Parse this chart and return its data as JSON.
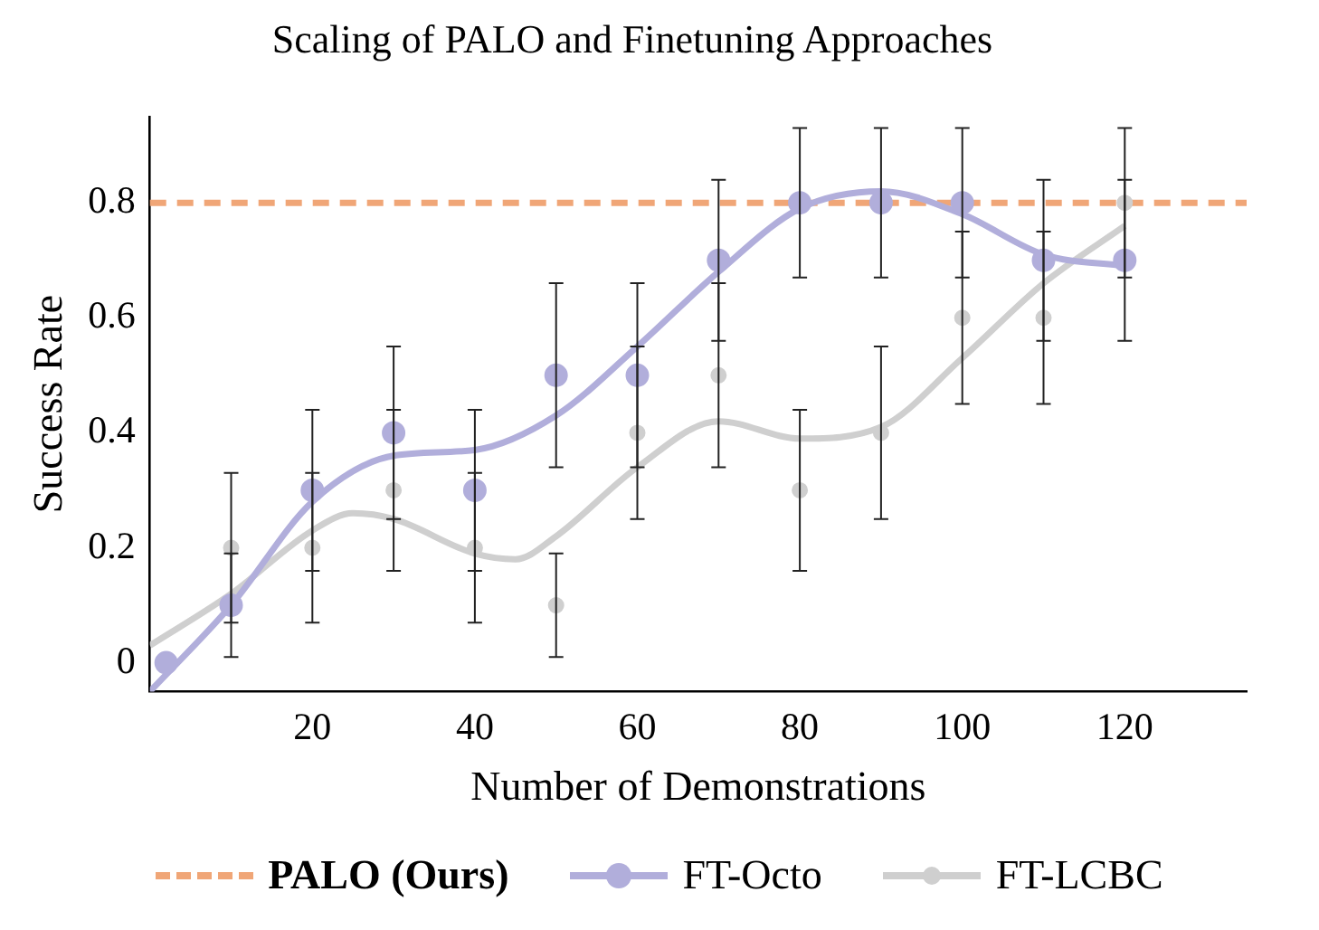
{
  "chart_data": {
    "type": "scatter",
    "title": "Scaling of PALO and Finetuning Approaches",
    "xlabel": "Number of Demonstrations",
    "ylabel": "Success Rate",
    "x": [
      2,
      10,
      20,
      30,
      40,
      50,
      60,
      70,
      80,
      90,
      100,
      110,
      120
    ],
    "xlim": [
      0,
      135
    ],
    "xticks": [
      20,
      40,
      60,
      80,
      100,
      120
    ],
    "ylim": [
      -0.05,
      0.95
    ],
    "yticks": [
      0,
      0.2,
      0.4,
      0.6,
      0.8
    ],
    "grid": false,
    "legend": "bottom",
    "marker": "circle",
    "ref_lines": [
      {
        "axis": "y",
        "value": 0.8,
        "label": "PALO (Ours)",
        "color": "#f0a677",
        "line_style": "dashed"
      }
    ],
    "series": [
      {
        "name": "FT-Octo",
        "color": "#b1aedb",
        "values": [
          0,
          0.1,
          0.3,
          0.4,
          0.3,
          0.5,
          0.5,
          0.7,
          0.8,
          0.8,
          0.8,
          0.7,
          0.7
        ],
        "errors": [
          null,
          0.09,
          0.14,
          0.15,
          0.14,
          0.16,
          0.16,
          0.14,
          0.13,
          0.13,
          0.13,
          0.14,
          0.14
        ]
      },
      {
        "name": "FT-LCBC",
        "color": "#cfcfcf",
        "values": [
          null,
          0.2,
          0.2,
          0.3,
          0.2,
          0.1,
          0.4,
          0.5,
          0.3,
          0.4,
          0.6,
          0.6,
          0.8
        ],
        "errors": [
          null,
          0.13,
          0.13,
          0.14,
          0.13,
          0.09,
          0.15,
          0.16,
          0.14,
          0.15,
          0.15,
          0.15,
          0.13
        ]
      },
      {
        "type": "line",
        "marker": "none",
        "color": "#b1aedb",
        "x": [
          0,
          10,
          20,
          30,
          40,
          50,
          60,
          70,
          80,
          90,
          100,
          110,
          120
        ],
        "values": [
          -0.05,
          0.1,
          0.28,
          0.36,
          0.37,
          0.43,
          0.55,
          0.68,
          0.79,
          0.82,
          0.78,
          0.71,
          0.69
        ]
      },
      {
        "type": "line",
        "marker": "none",
        "color": "#cfcfcf",
        "x": [
          0,
          10,
          20,
          25,
          30,
          40,
          45,
          50,
          60,
          70,
          80,
          90,
          100,
          110,
          120
        ],
        "values": [
          0.03,
          0.12,
          0.23,
          0.26,
          0.25,
          0.19,
          0.18,
          0.22,
          0.34,
          0.42,
          0.39,
          0.41,
          0.53,
          0.66,
          0.76
        ]
      }
    ]
  }
}
